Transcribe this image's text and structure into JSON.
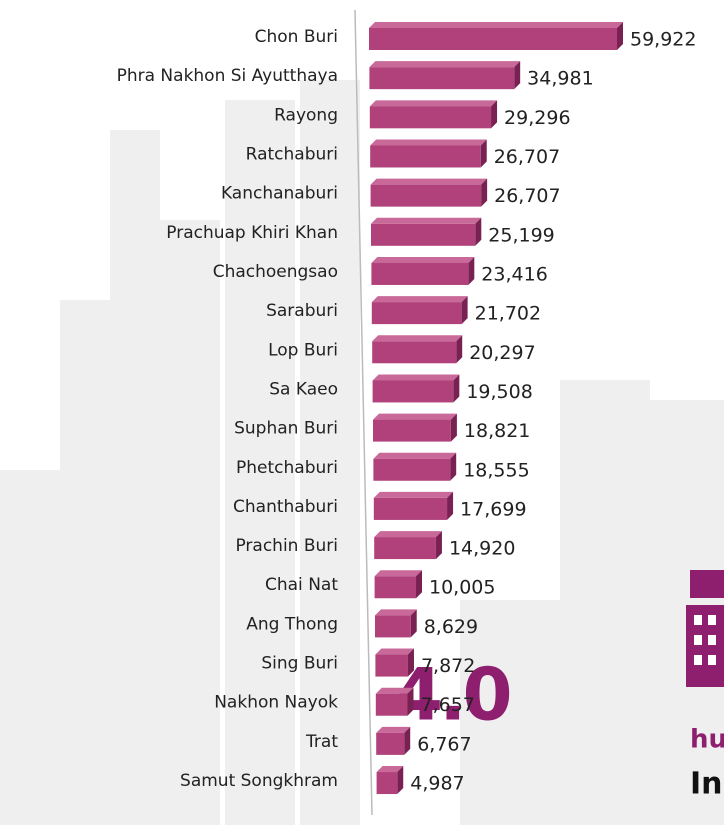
{
  "chart_data": {
    "type": "bar3d-horizontal",
    "categories": [
      "Chon Buri",
      "Phra Nakhon Si Ayutthaya",
      "Rayong",
      "Ratchaburi",
      "Kanchanaburi",
      "Prachuap Khiri Khan",
      "Chachoengsao",
      "Saraburi",
      "Lop Buri",
      "Sa Kaeo",
      "Suphan Buri",
      "Phetchaburi",
      "Chanthaburi",
      "Prachin Buri",
      "Chai Nat",
      "Ang Thong",
      "Sing Buri",
      "Nakhon Nayok",
      "Trat",
      "Samut Songkhram"
    ],
    "values": [
      59922,
      34981,
      29296,
      26707,
      26707,
      25199,
      23416,
      21702,
      20297,
      19508,
      18821,
      18555,
      17699,
      14920,
      10005,
      8629,
      7872,
      7657,
      6767,
      4987
    ],
    "value_labels": [
      "59,922",
      "34,981",
      "29,296",
      "26,707",
      "26,707",
      "25,199",
      "23,416",
      "21,702",
      "20,297",
      "19,508",
      "18,821",
      "18,555",
      "17,699",
      "14,920",
      "10,005",
      "8,629",
      "7,872",
      "7,657",
      "6,767",
      "4,987"
    ],
    "color": "#b0417a",
    "decorations": [
      "4.0",
      "hu",
      "In"
    ]
  }
}
